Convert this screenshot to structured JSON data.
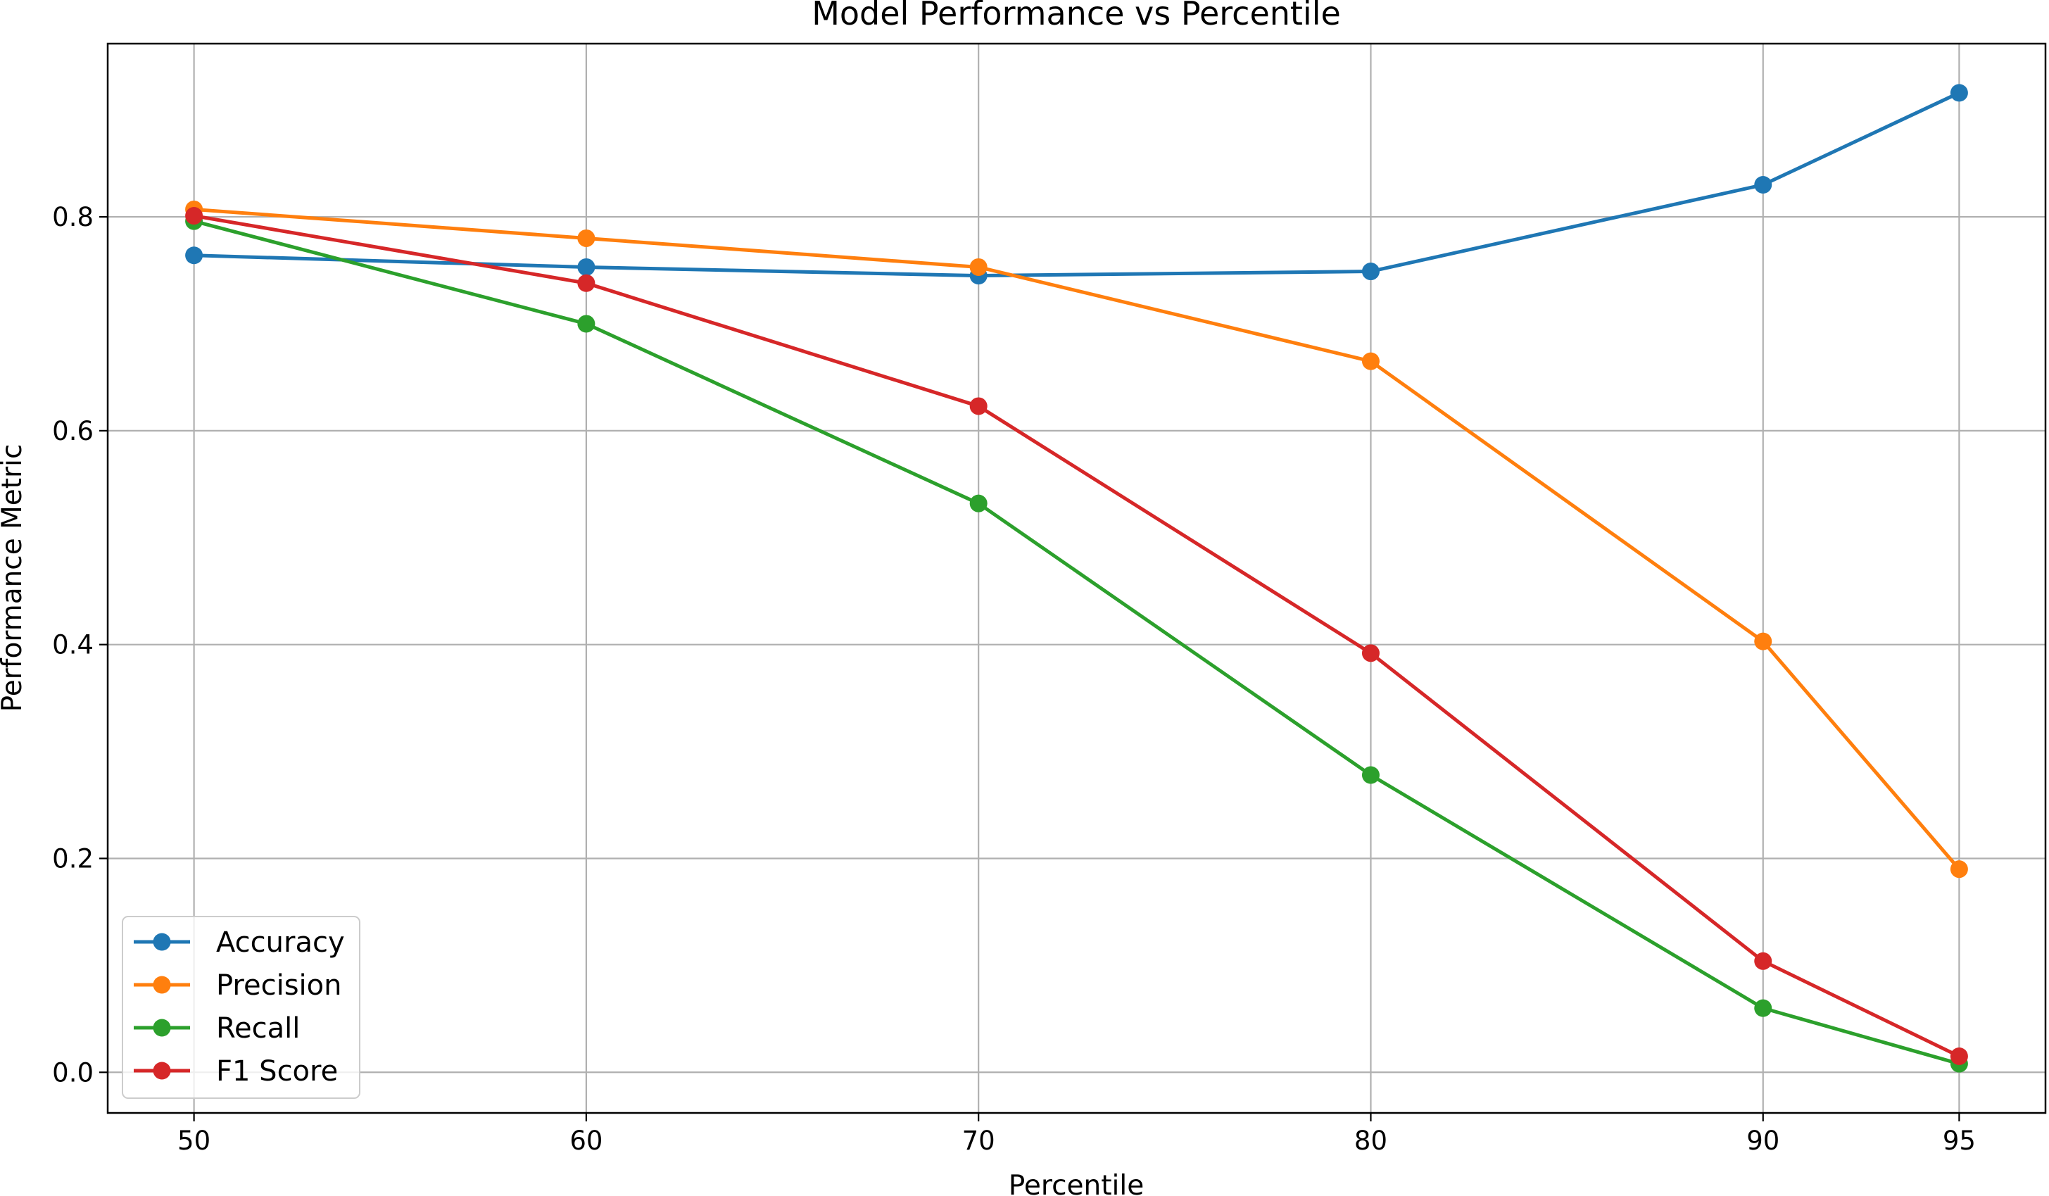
{
  "chart_data": {
    "type": "line",
    "title": "Model Performance vs Percentile",
    "xlabel": "Percentile",
    "ylabel": "Performance Metric",
    "x": [
      50,
      60,
      70,
      80,
      90,
      95
    ],
    "x_ticks": [
      "50",
      "60",
      "70",
      "80",
      "90",
      "95"
    ],
    "y_ticks": [
      "0.0",
      "0.2",
      "0.4",
      "0.6",
      "0.8"
    ],
    "xlim": [
      47.8,
      97.2
    ],
    "ylim": [
      -0.038,
      0.962
    ],
    "grid": true,
    "legend_position": "lower-left",
    "series": [
      {
        "name": "Accuracy",
        "color": "#1f77b4",
        "values": [
          0.764,
          0.753,
          0.745,
          0.749,
          0.83,
          0.916
        ]
      },
      {
        "name": "Precision",
        "color": "#ff7f0e",
        "values": [
          0.807,
          0.78,
          0.753,
          0.665,
          0.403,
          0.19
        ]
      },
      {
        "name": "Recall",
        "color": "#2ca02c",
        "values": [
          0.796,
          0.7,
          0.532,
          0.278,
          0.06,
          0.008
        ]
      },
      {
        "name": "F1 Score",
        "color": "#d62728",
        "values": [
          0.801,
          0.738,
          0.623,
          0.392,
          0.104,
          0.015
        ]
      }
    ]
  }
}
